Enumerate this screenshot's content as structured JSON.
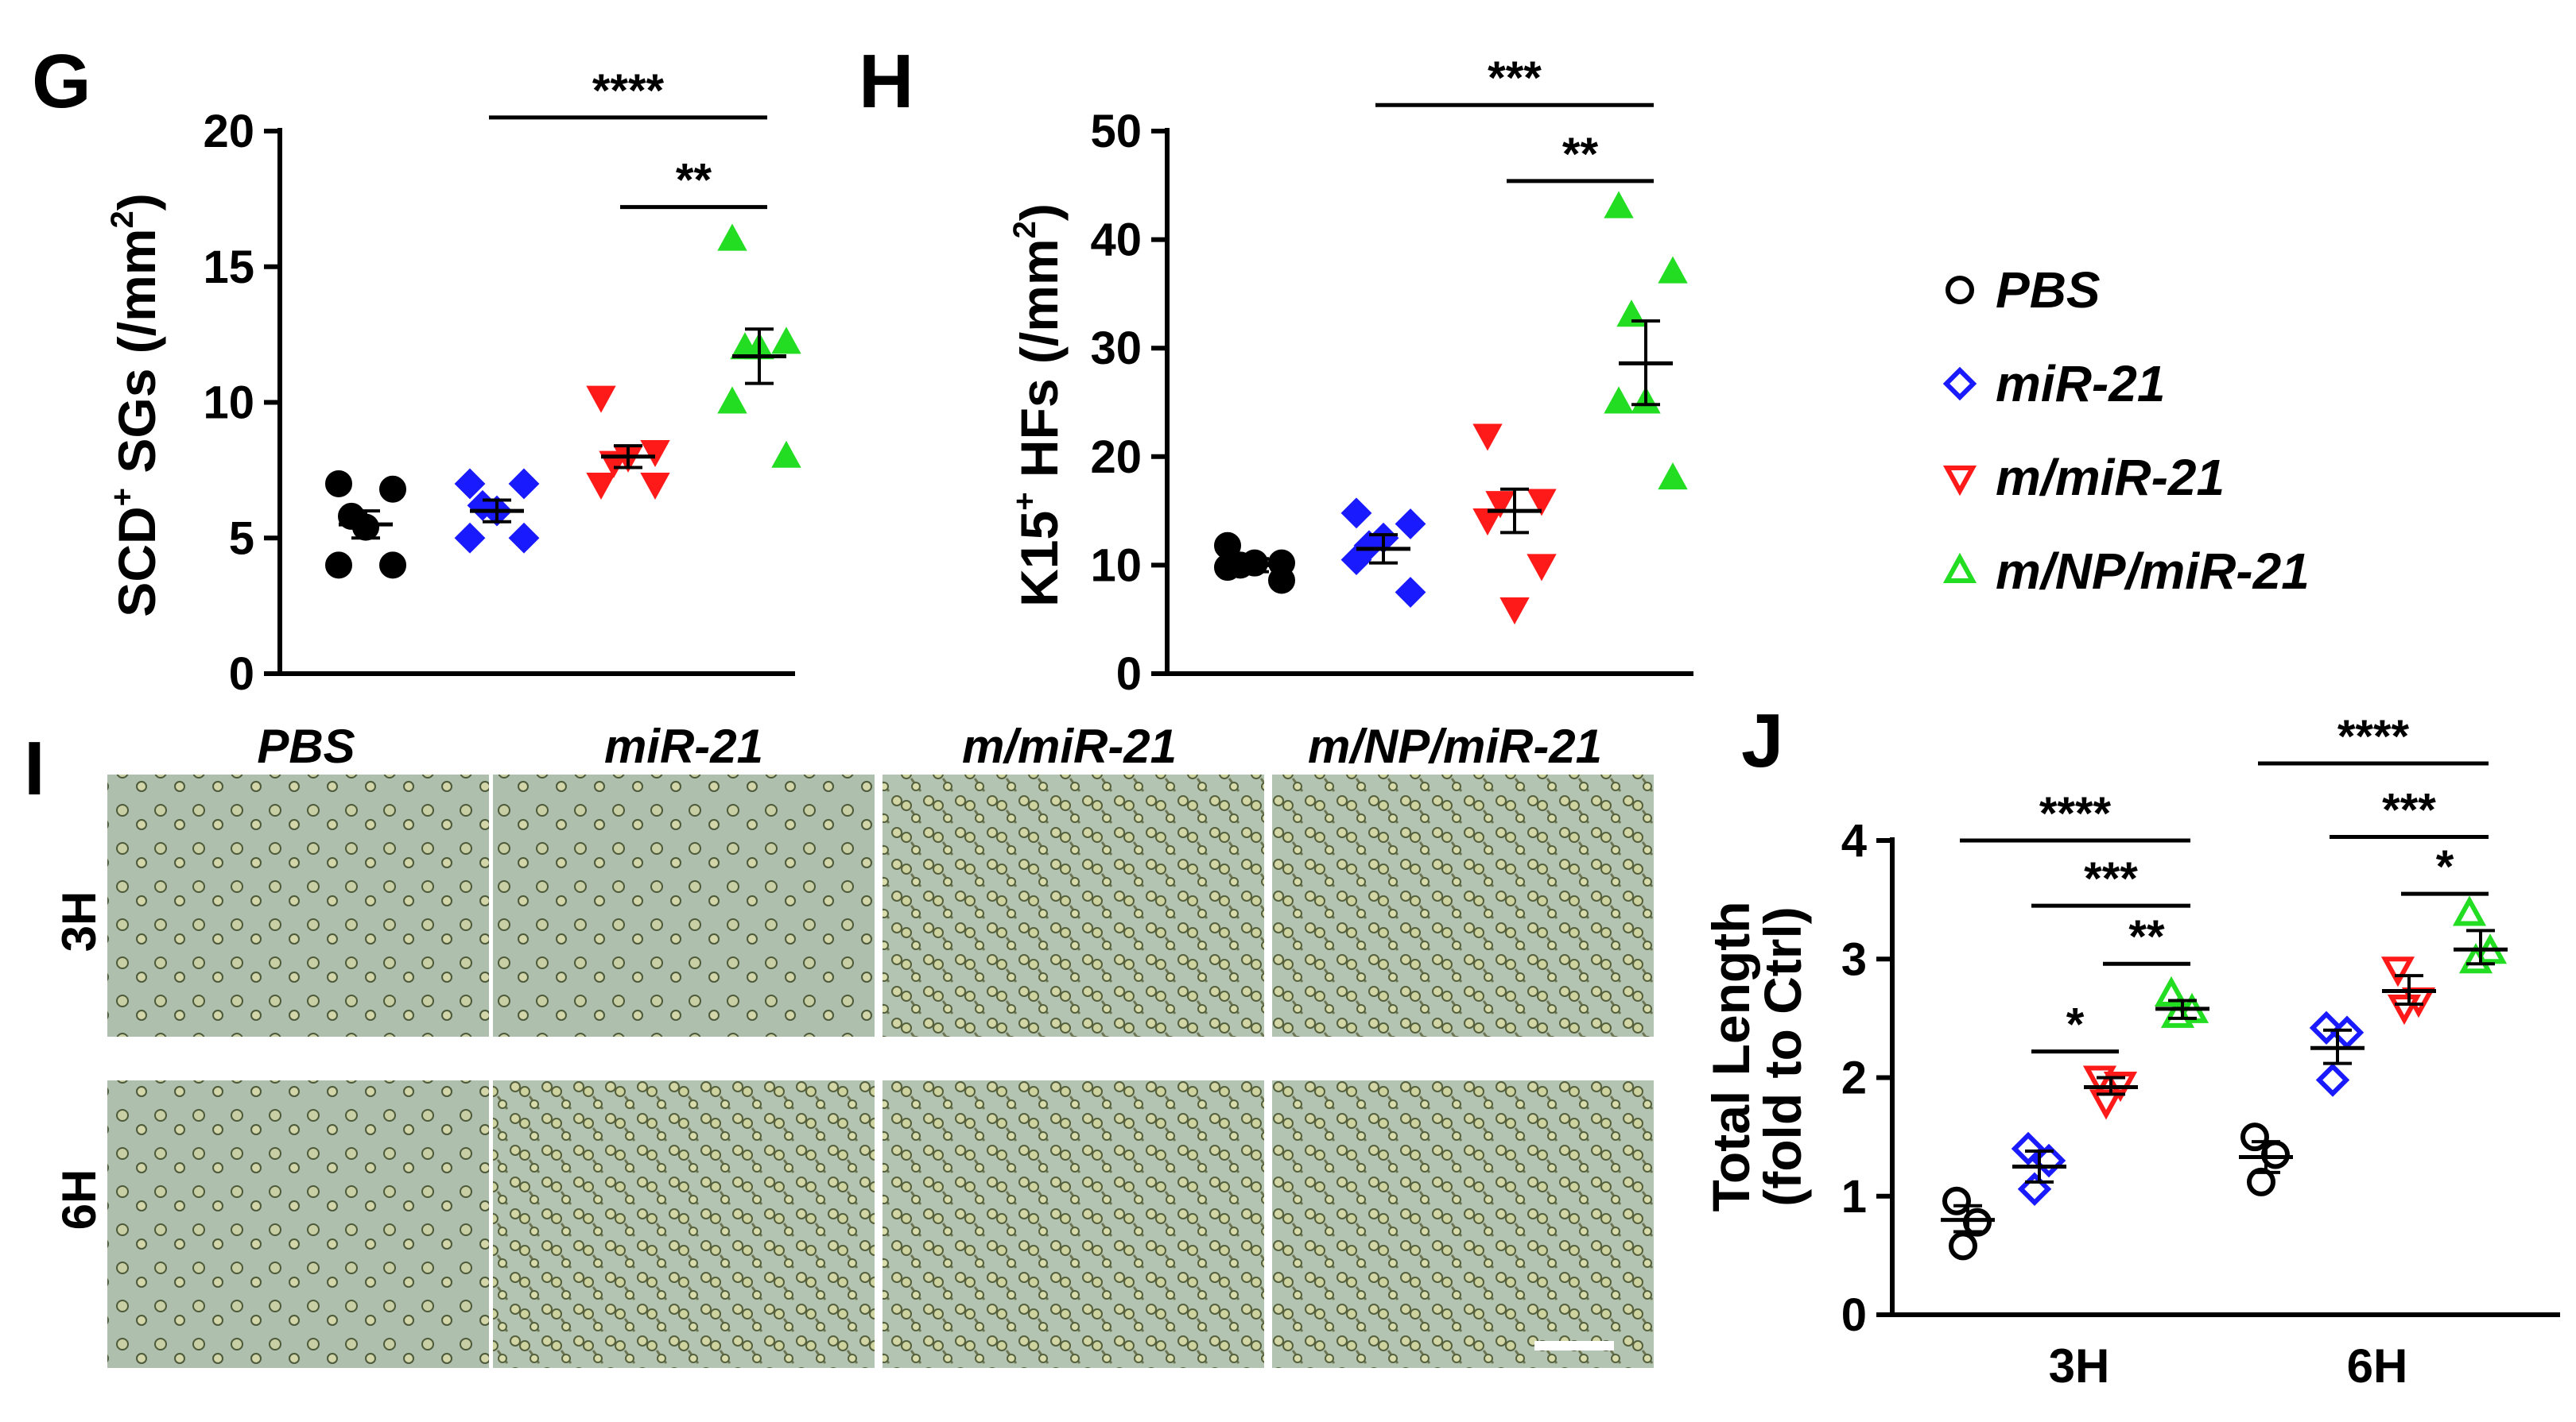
{
  "colors": {
    "PBS": "#000000",
    "miR-21": "#1a1aff",
    "m/miR-21": "#ff1a1a",
    "m/NP/miR-21": "#22dd22"
  },
  "legend": {
    "items": [
      {
        "label": "PBS",
        "color": "#000000",
        "marker": "circle-open"
      },
      {
        "label": "miR-21",
        "color": "#1a1aff",
        "marker": "diamond-open"
      },
      {
        "label": "m/miR-21",
        "color": "#ff1a1a",
        "marker": "triangle-down-open"
      },
      {
        "label": "m/NP/miR-21",
        "color": "#22dd22",
        "marker": "triangle-up-open"
      }
    ]
  },
  "panels": {
    "G": {
      "letter": "G",
      "ylabel": "SCD",
      "ylabel_sup": "+",
      "ylabel_rest": " SGs (/mm",
      "ylabel_sup2": "2",
      "ylabel_end": ")"
    },
    "H": {
      "letter": "H",
      "ylabel": "K15",
      "ylabel_sup": "+",
      "ylabel_rest": " HFs (/mm",
      "ylabel_sup2": "2",
      "ylabel_end": ")"
    },
    "I": {
      "letter": "I",
      "columns": [
        "PBS",
        "miR-21",
        "m/miR-21",
        "m/NP/miR-21"
      ],
      "rows": [
        "3H",
        "6H"
      ]
    },
    "J": {
      "letter": "J",
      "ylabel_line1": "Total Length",
      "ylabel_line2": "(fold to Ctrl)"
    }
  },
  "chart_data": [
    {
      "panel": "G",
      "type": "scatter",
      "ylim": [
        0,
        20
      ],
      "yticks": [
        "0",
        "5",
        "10",
        "15",
        "20"
      ],
      "groups": [
        "PBS",
        "miR-21",
        "m/miR-21",
        "m/NP/miR-21"
      ],
      "series": [
        {
          "group": "PBS",
          "marker": "circle-filled",
          "values": [
            7.0,
            6.8,
            5.8,
            4.0,
            4.0,
            5.4
          ],
          "mean": 5.5,
          "sem_range": [
            5.0,
            6.0
          ]
        },
        {
          "group": "miR-21",
          "marker": "diamond-filled",
          "values": [
            7.0,
            7.0,
            6.2,
            5.0,
            5.0,
            6.0
          ],
          "mean": 6.0,
          "sem_range": [
            5.6,
            6.4
          ]
        },
        {
          "group": "m/miR-21",
          "marker": "triangle-down-filled",
          "values": [
            10.2,
            8.2,
            7.8,
            7.0,
            7.0,
            8.0
          ],
          "mean": 8.0,
          "sem_range": [
            7.6,
            8.4
          ]
        },
        {
          "group": "m/NP/miR-21",
          "marker": "triangle-up-filled",
          "values": [
            16.0,
            12.2,
            12.0,
            10.0,
            8.0,
            12.0
          ],
          "mean": 11.7,
          "sem_range": [
            10.7,
            12.7
          ]
        }
      ],
      "significance": [
        {
          "from": "miR-21",
          "to": "m/NP/miR-21",
          "label": "****",
          "y": 20.5
        },
        {
          "from": "m/miR-21",
          "to": "m/NP/miR-21",
          "label": "**",
          "y": 17.2
        }
      ]
    },
    {
      "panel": "H",
      "type": "scatter",
      "ylim": [
        0,
        50
      ],
      "yticks": [
        "0",
        "10",
        "20",
        "30",
        "40",
        "50"
      ],
      "groups": [
        "PBS",
        "miR-21",
        "m/miR-21",
        "m/NP/miR-21"
      ],
      "series": [
        {
          "group": "PBS",
          "marker": "circle-filled",
          "values": [
            11.8,
            10.2,
            10.0,
            9.8,
            8.6,
            10.2
          ],
          "mean": 10.0,
          "sem_range": [
            9.4,
            10.6
          ]
        },
        {
          "group": "miR-21",
          "marker": "diamond-filled",
          "values": [
            14.8,
            13.8,
            11.8,
            10.5,
            7.5,
            12.5
          ],
          "mean": 11.5,
          "sem_range": [
            10.2,
            12.8
          ]
        },
        {
          "group": "m/miR-21",
          "marker": "triangle-down-filled",
          "values": [
            22.0,
            16.0,
            15.8,
            14.2,
            10.0,
            6.0
          ],
          "mean": 15.0,
          "sem_range": [
            13.0,
            17.0
          ]
        },
        {
          "group": "m/NP/miR-21",
          "marker": "triangle-up-filled",
          "values": [
            43.0,
            37.0,
            33.0,
            25.0,
            18.0,
            25.0
          ],
          "mean": 28.6,
          "sem_range": [
            24.8,
            32.5
          ]
        }
      ],
      "significance": [
        {
          "from": "miR-21",
          "to": "m/NP/miR-21",
          "label": "***",
          "y": 52.4
        },
        {
          "from": "m/miR-21",
          "to": "m/NP/miR-21",
          "label": "**",
          "y": 45.4
        }
      ]
    },
    {
      "panel": "J",
      "type": "scatter",
      "ylim": [
        0,
        4
      ],
      "yticks": [
        "0",
        "1",
        "2",
        "3",
        "4"
      ],
      "categories": [
        "3H",
        "6H"
      ],
      "groups": [
        "PBS",
        "miR-21",
        "m/miR-21",
        "m/NP/miR-21"
      ],
      "series": [
        {
          "group": "PBS",
          "marker": "circle-open",
          "values_3H": [
            0.96,
            0.78,
            0.58
          ],
          "mean_3H": 0.8,
          "sem_3H": [
            0.7,
            0.92
          ],
          "values_6H": [
            1.5,
            1.35,
            1.12
          ],
          "mean_6H": 1.33,
          "sem_6H": [
            1.2,
            1.46
          ]
        },
        {
          "group": "miR-21",
          "marker": "diamond-open",
          "values_3H": [
            1.4,
            1.3,
            1.06
          ],
          "mean_3H": 1.25,
          "sem_3H": [
            1.12,
            1.38
          ],
          "values_6H": [
            2.42,
            2.38,
            1.98
          ],
          "mean_6H": 2.25,
          "sem_6H": [
            2.12,
            2.4
          ]
        },
        {
          "group": "m/miR-21",
          "marker": "triangle-down-open",
          "values_3H": [
            2.0,
            1.95,
            1.8
          ],
          "mean_3H": 1.92,
          "sem_3H": [
            1.86,
            2.0
          ],
          "values_6H": [
            2.92,
            2.66,
            2.6
          ],
          "mean_6H": 2.73,
          "sem_6H": [
            2.62,
            2.86
          ]
        },
        {
          "group": "m/NP/miR-21",
          "marker": "triangle-up-open",
          "values_3H": [
            2.7,
            2.56,
            2.52
          ],
          "mean_3H": 2.58,
          "sem_3H": [
            2.5,
            2.65
          ],
          "values_6H": [
            3.38,
            3.06,
            2.98
          ],
          "mean_6H": 3.08,
          "sem_6H": [
            2.96,
            3.24
          ]
        }
      ],
      "significance": [
        {
          "category": "3H",
          "from": "PBS",
          "to": "m/NP/miR-21",
          "label": "****",
          "y": 4.0
        },
        {
          "category": "3H",
          "from": "miR-21",
          "to": "m/NP/miR-21",
          "label": "***",
          "y": 3.45
        },
        {
          "category": "3H",
          "from": "m/miR-21",
          "to": "m/NP/miR-21",
          "label": "**",
          "y": 2.96
        },
        {
          "category": "3H",
          "from": "miR-21",
          "to": "m/miR-21",
          "label": "*",
          "y": 2.22
        },
        {
          "category": "6H",
          "from": "PBS",
          "to": "m/NP/miR-21",
          "label": "****",
          "y": 4.65
        },
        {
          "category": "6H",
          "from": "miR-21",
          "to": "m/NP/miR-21",
          "label": "***",
          "y": 4.03
        },
        {
          "category": "6H",
          "from": "m/miR-21",
          "to": "m/NP/miR-21",
          "label": "*",
          "y": 3.55
        }
      ]
    }
  ]
}
